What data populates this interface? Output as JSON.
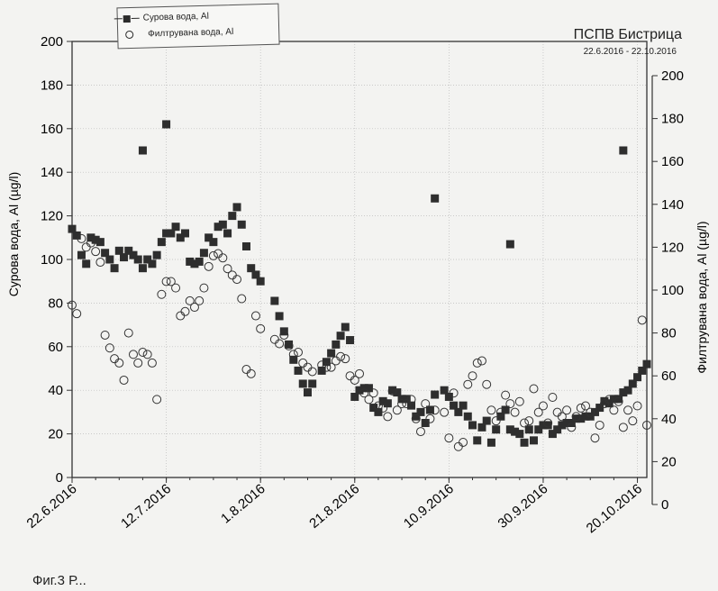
{
  "chart_data": {
    "type": "scatter",
    "title": "ПСПВ Бистрица",
    "subtitle": "22.6.2016 - 22.10.2016",
    "ylabel": "Сурова вода, Al (µg/l)",
    "y2label": "Филтрувана вода, Al (µg/l)",
    "xlabel": "",
    "x_ticks": [
      "22.6.2016",
      "12.7.2016",
      "1.8.2016",
      "21.8.2016",
      "10.9.2016",
      "30.9.2016",
      "20.10.2016"
    ],
    "ylim": [
      0,
      200
    ],
    "y_ticks": [
      0,
      20,
      40,
      60,
      80,
      100,
      120,
      140,
      160,
      180,
      200
    ],
    "y2lim": [
      0,
      200
    ],
    "y2_ticks": [
      0,
      20,
      40,
      60,
      80,
      100,
      120,
      140,
      160,
      180,
      200
    ],
    "grid": true,
    "legend_position": "top-left",
    "series": [
      {
        "name": "Сурова вода, Al",
        "marker": "filled-square",
        "axis": "left",
        "x": [
          "2016-06-22",
          "2016-06-23",
          "2016-06-24",
          "2016-06-25",
          "2016-06-26",
          "2016-06-27",
          "2016-06-28",
          "2016-06-29",
          "2016-06-30",
          "2016-07-01",
          "2016-07-02",
          "2016-07-03",
          "2016-07-04",
          "2016-07-05",
          "2016-07-06",
          "2016-07-07",
          "2016-07-08",
          "2016-07-09",
          "2016-07-10",
          "2016-07-11",
          "2016-07-12",
          "2016-07-13",
          "2016-07-14",
          "2016-07-15",
          "2016-07-16",
          "2016-07-17",
          "2016-07-18",
          "2016-07-19",
          "2016-07-20",
          "2016-07-21",
          "2016-07-22",
          "2016-07-23",
          "2016-07-24",
          "2016-07-25",
          "2016-07-26",
          "2016-07-27",
          "2016-07-28",
          "2016-07-29",
          "2016-07-30",
          "2016-07-31",
          "2016-08-01",
          "2016-08-04",
          "2016-08-05",
          "2016-08-06",
          "2016-08-07",
          "2016-08-08",
          "2016-08-09",
          "2016-08-10",
          "2016-08-11",
          "2016-08-12",
          "2016-08-14",
          "2016-08-15",
          "2016-08-16",
          "2016-08-17",
          "2016-08-18",
          "2016-08-19",
          "2016-08-20",
          "2016-08-21",
          "2016-08-22",
          "2016-08-23",
          "2016-08-24",
          "2016-08-25",
          "2016-08-26",
          "2016-08-27",
          "2016-08-28",
          "2016-08-29",
          "2016-08-30",
          "2016-08-31",
          "2016-09-01",
          "2016-09-02",
          "2016-09-03",
          "2016-09-04",
          "2016-09-05",
          "2016-09-06",
          "2016-09-07",
          "2016-09-09",
          "2016-09-10",
          "2016-09-11",
          "2016-09-12",
          "2016-09-13",
          "2016-09-14",
          "2016-09-15",
          "2016-09-16",
          "2016-09-17",
          "2016-09-18",
          "2016-09-19",
          "2016-09-20",
          "2016-09-21",
          "2016-09-22",
          "2016-09-23",
          "2016-09-24",
          "2016-09-25",
          "2016-09-26",
          "2016-09-27",
          "2016-09-28",
          "2016-09-29",
          "2016-09-30",
          "2016-10-01",
          "2016-10-02",
          "2016-10-03",
          "2016-10-04",
          "2016-10-05",
          "2016-10-06",
          "2016-10-07",
          "2016-10-08",
          "2016-10-09",
          "2016-10-10",
          "2016-10-11",
          "2016-10-12",
          "2016-10-13",
          "2016-10-14",
          "2016-10-15",
          "2016-10-16",
          "2016-10-17",
          "2016-10-18",
          "2016-10-19",
          "2016-10-20",
          "2016-10-21",
          "2016-10-22"
        ],
        "y": [
          114,
          111,
          102,
          98,
          110,
          109,
          108,
          103,
          100,
          96,
          104,
          101,
          104,
          102,
          100,
          96,
          100,
          98,
          102,
          108,
          112,
          112,
          115,
          110,
          112,
          99,
          98,
          99,
          103,
          110,
          108,
          115,
          116,
          112,
          120,
          124,
          116,
          106,
          96,
          93,
          90,
          81,
          74,
          67,
          61,
          54,
          49,
          43,
          39,
          43,
          49,
          53,
          57,
          61,
          65,
          69,
          63,
          37,
          40,
          41,
          41,
          32,
          30,
          35,
          34,
          40,
          39,
          36,
          36,
          33,
          28,
          30,
          25,
          31,
          38,
          40,
          37,
          33,
          30,
          33,
          28,
          24,
          17,
          23,
          26,
          16,
          22,
          28,
          31,
          22,
          21,
          20,
          16,
          22,
          17,
          22,
          24,
          24,
          20,
          22,
          24,
          25,
          25,
          27,
          27,
          28,
          28,
          30,
          32,
          35,
          34,
          36,
          36,
          39,
          40,
          43,
          46,
          49,
          52
        ],
        "outliers": [
          {
            "x": "2016-07-07",
            "y": 150
          },
          {
            "x": "2016-07-12",
            "y": 162
          },
          {
            "x": "2016-09-07",
            "y": 128
          },
          {
            "x": "2016-09-23",
            "y": 107
          },
          {
            "x": "2016-10-17",
            "y": 150
          }
        ]
      },
      {
        "name": "Филтрувана вода, Al",
        "marker": "open-circle",
        "axis": "right",
        "x": [
          "2016-06-22",
          "2016-06-23",
          "2016-06-24",
          "2016-06-25",
          "2016-06-26",
          "2016-06-27",
          "2016-06-28",
          "2016-06-29",
          "2016-06-30",
          "2016-07-01",
          "2016-07-02",
          "2016-07-03",
          "2016-07-04",
          "2016-07-05",
          "2016-07-06",
          "2016-07-07",
          "2016-07-08",
          "2016-07-09",
          "2016-07-10",
          "2016-07-11",
          "2016-07-12",
          "2016-07-13",
          "2016-07-14",
          "2016-07-15",
          "2016-07-16",
          "2016-07-17",
          "2016-07-18",
          "2016-07-19",
          "2016-07-20",
          "2016-07-21",
          "2016-07-22",
          "2016-07-23",
          "2016-07-24",
          "2016-07-25",
          "2016-07-26",
          "2016-07-27",
          "2016-07-28",
          "2016-07-29",
          "2016-07-30",
          "2016-07-31",
          "2016-08-01",
          "2016-08-04",
          "2016-08-05",
          "2016-08-06",
          "2016-08-07",
          "2016-08-08",
          "2016-08-09",
          "2016-08-10",
          "2016-08-11",
          "2016-08-12",
          "2016-08-14",
          "2016-08-15",
          "2016-08-16",
          "2016-08-17",
          "2016-08-18",
          "2016-08-19",
          "2016-08-20",
          "2016-08-21",
          "2016-08-22",
          "2016-08-23",
          "2016-08-24",
          "2016-08-25",
          "2016-08-26",
          "2016-08-27",
          "2016-08-28",
          "2016-08-29",
          "2016-08-30",
          "2016-08-31",
          "2016-09-01",
          "2016-09-02",
          "2016-09-03",
          "2016-09-04",
          "2016-09-05",
          "2016-09-06",
          "2016-09-07",
          "2016-09-09",
          "2016-09-10",
          "2016-09-11",
          "2016-09-12",
          "2016-09-13",
          "2016-09-14",
          "2016-09-15",
          "2016-09-16",
          "2016-09-17",
          "2016-09-18",
          "2016-09-19",
          "2016-09-20",
          "2016-09-21",
          "2016-09-22",
          "2016-09-23",
          "2016-09-24",
          "2016-09-25",
          "2016-09-26",
          "2016-09-27",
          "2016-09-28",
          "2016-09-29",
          "2016-09-30",
          "2016-10-01",
          "2016-10-02",
          "2016-10-03",
          "2016-10-04",
          "2016-10-05",
          "2016-10-06",
          "2016-10-07",
          "2016-10-08",
          "2016-10-09",
          "2016-10-10",
          "2016-10-11",
          "2016-10-12",
          "2016-10-13",
          "2016-10-14",
          "2016-10-15",
          "2016-10-16",
          "2016-10-17",
          "2016-10-18",
          "2016-10-19",
          "2016-10-20",
          "2016-10-21",
          "2016-10-22"
        ],
        "y": [
          93,
          89,
          124,
          120,
          122,
          118,
          113,
          79,
          73,
          68,
          66,
          58,
          80,
          70,
          66,
          71,
          70,
          66,
          49,
          98,
          104,
          104,
          101,
          88,
          90,
          95,
          92,
          95,
          101,
          111,
          116,
          117,
          115,
          110,
          107,
          105,
          96,
          63,
          61,
          88,
          82,
          77,
          75,
          79,
          74,
          70,
          71,
          66,
          64,
          62,
          65,
          64,
          64,
          67,
          69,
          68,
          60,
          58,
          61,
          52,
          49,
          52,
          46,
          45,
          41,
          53,
          44,
          47,
          47,
          49,
          40,
          34,
          47,
          40,
          44,
          43,
          31,
          52,
          27,
          29,
          56,
          60,
          66,
          67,
          56,
          44,
          39,
          43,
          51,
          47,
          43,
          48,
          38,
          39,
          54,
          43,
          46,
          38,
          50,
          43,
          41,
          44,
          36,
          41,
          45,
          46,
          43,
          31,
          37,
          47,
          49,
          44,
          48,
          36,
          44,
          39,
          46,
          86,
          37
        ]
      }
    ]
  },
  "caption": "Фиг.3 Р..."
}
